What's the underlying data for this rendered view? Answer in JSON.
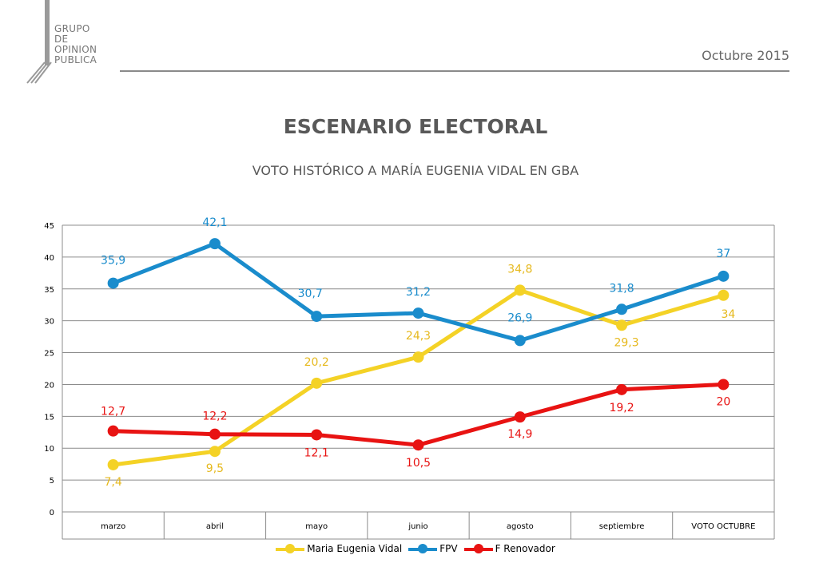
{
  "header": {
    "logo_lines": [
      "GRUPO",
      "DE",
      "OPINION",
      "PUBLICA"
    ],
    "date": "Octubre 2015"
  },
  "colors": {
    "vidal": "#f4d226",
    "fpv": "#1a8ccc",
    "renovador": "#e81312",
    "grid": "#888888",
    "text": "#595959"
  },
  "chart_data": {
    "type": "line",
    "title": "ESCENARIO ELECTORAL",
    "subtitle": "VOTO HISTÓRICO A MARÍA EUGENIA VIDAL EN GBA",
    "categories": [
      "marzo",
      "abril",
      "mayo",
      "junio",
      "agosto",
      "septiembre",
      "VOTO OCTUBRE"
    ],
    "ylim": [
      0,
      45
    ],
    "yticks": [
      0,
      5,
      10,
      15,
      20,
      25,
      30,
      35,
      40,
      45
    ],
    "grid": true,
    "legend": "bottom",
    "series": [
      {
        "name": "Maria Eugenia Vidal",
        "color": "#f4d226",
        "label_color": "#e6b91e",
        "values": [
          7.4,
          9.5,
          20.2,
          24.3,
          34.8,
          29.3,
          34
        ],
        "labels": [
          "7,4",
          "9,5",
          "20,2",
          "24,3",
          "34,8",
          "29,3",
          "34"
        ]
      },
      {
        "name": "FPV",
        "color": "#1a8ccc",
        "label_color": "#1a8ccc",
        "values": [
          35.9,
          42.1,
          30.7,
          31.2,
          26.9,
          31.8,
          37
        ],
        "labels": [
          "35,9",
          "42,1",
          "30,7",
          "31,2",
          "26,9",
          "31,8",
          "37"
        ]
      },
      {
        "name": "F Renovador",
        "color": "#e81312",
        "label_color": "#e81312",
        "values": [
          12.7,
          12.2,
          12.1,
          10.5,
          14.9,
          19.2,
          20
        ],
        "labels": [
          "12,7",
          "12,2",
          "12,1",
          "10,5",
          "14,9",
          "19,2",
          "20"
        ]
      }
    ]
  }
}
